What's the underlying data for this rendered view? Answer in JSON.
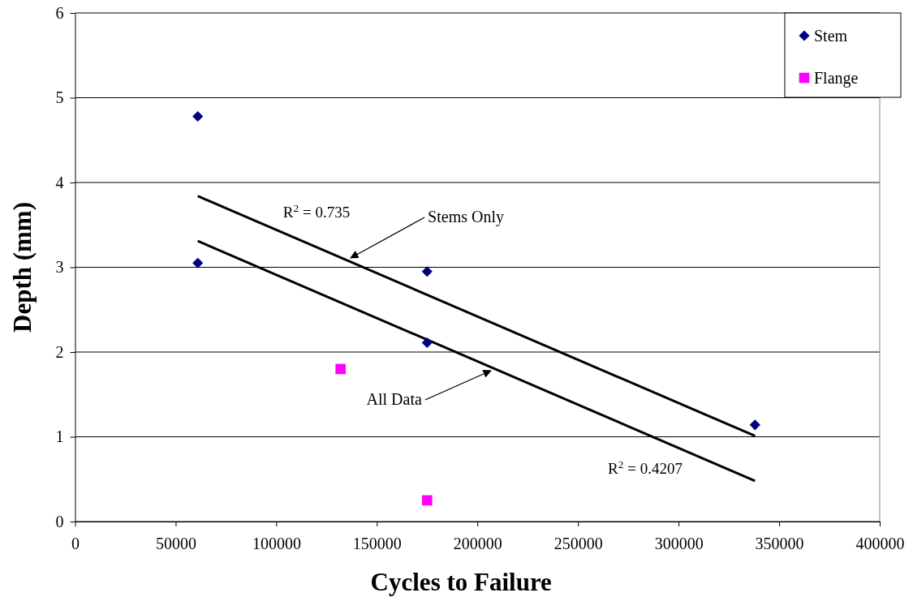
{
  "chart_data": {
    "type": "scatter",
    "xlabel": "Cycles to Failure",
    "ylabel": "Depth (mm)",
    "xlim": [
      0,
      400000
    ],
    "xticks": [
      0,
      50000,
      100000,
      150000,
      200000,
      250000,
      300000,
      350000,
      400000
    ],
    "ylim": [
      0,
      6
    ],
    "yticks": [
      0,
      1,
      2,
      3,
      4,
      5,
      6
    ],
    "grid": "y",
    "legend": "top right",
    "series": [
      {
        "name": "Stem",
        "color": "#000080",
        "marker": "diamond",
        "x": [
          61000,
          61000,
          175000,
          175000,
          338000
        ],
        "values": [
          4.78,
          3.05,
          2.95,
          2.11,
          1.14
        ]
      },
      {
        "name": "Flange",
        "color": "#ff00ff",
        "marker": "square",
        "x": [
          132000,
          175000
        ],
        "values": [
          1.8,
          0.25
        ]
      },
      {
        "type": "line",
        "color": "#000000",
        "marker": "none",
        "x": [
          61000,
          338000
        ],
        "values": [
          3.84,
          1.01
        ]
      },
      {
        "type": "line",
        "color": "#000000",
        "marker": "none",
        "x": [
          61000,
          338000
        ],
        "values": [
          3.31,
          0.48
        ]
      }
    ],
    "annotations": [
      "R$^{2}$ = 0.735",
      {
        "text": "Stems Only",
        "x": 137000,
        "y": 3.11
      },
      {
        "text": "All Data",
        "x": 206700,
        "y": 1.78
      },
      "R$^{2}$ = 0.4207"
    ]
  }
}
